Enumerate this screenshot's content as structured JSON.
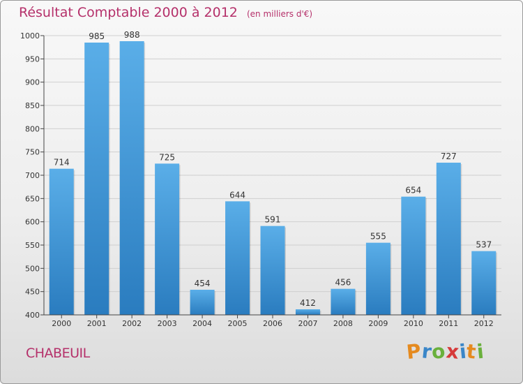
{
  "title": "Résultat Comptable 2000 à 2012",
  "subtitle": "(en milliers d'€)",
  "commune": "CHABEUIL",
  "logo": {
    "letters": [
      "P",
      "r",
      "o",
      "x",
      "i",
      "t",
      "i"
    ],
    "colors": [
      "#e58a1f",
      "#3a86c8",
      "#6ab03c",
      "#d63a3a",
      "#3a86c8",
      "#e58a1f",
      "#6ab03c"
    ]
  },
  "colors": {
    "bar_top": "#5aaee8",
    "bar_bottom": "#2a7cbf",
    "grid": "#cfcfcf",
    "title": "#b5306a",
    "axis": "#444444"
  },
  "chart_data": {
    "type": "bar",
    "title": "Résultat Comptable 2000 à 2012",
    "subtitle": "(en milliers d'€)",
    "xlabel": "",
    "ylabel": "",
    "categories": [
      "2000",
      "2001",
      "2002",
      "2003",
      "2004",
      "2005",
      "2006",
      "2007",
      "2008",
      "2009",
      "2010",
      "2011",
      "2012"
    ],
    "values": [
      714,
      985,
      988,
      725,
      454,
      644,
      591,
      412,
      456,
      555,
      654,
      727,
      537
    ],
    "value_labels": [
      "714",
      "985",
      "988",
      "725",
      "454",
      "644",
      "591",
      "412",
      "456",
      "555",
      "654",
      "727",
      "537"
    ],
    "yticks": [
      400,
      450,
      500,
      550,
      600,
      650,
      700,
      750,
      800,
      850,
      900,
      950,
      1000
    ],
    "ytick_labels": [
      "400",
      "450",
      "500",
      "550",
      "600",
      "650",
      "700",
      "750",
      "800",
      "850",
      "900",
      "950",
      "1000"
    ],
    "ylim": [
      400,
      1000
    ],
    "grid": true
  }
}
